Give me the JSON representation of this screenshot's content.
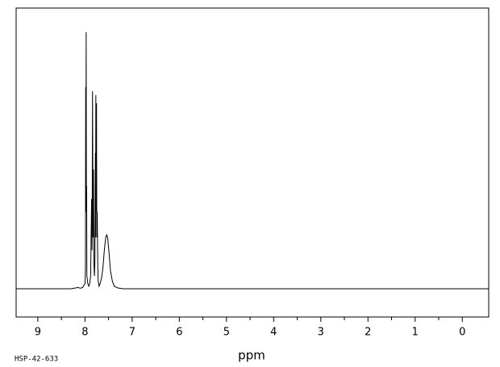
{
  "chart_data": {
    "type": "line",
    "x_label": "ppm",
    "annotation": "HSP-42-633",
    "xlim": [
      9.46,
      -0.56
    ],
    "ylim": [
      -0.11,
      1.094
    ],
    "xticks": [
      9,
      8,
      7,
      6,
      5,
      4,
      3,
      2,
      1,
      0
    ],
    "xminorticks": [
      8.5,
      7.5,
      6.5,
      5.5,
      4.5,
      3.5,
      2.5,
      1.5,
      0.5
    ],
    "series": [
      {
        "color": "#000000",
        "x": [
          9.46,
          8.3,
          8.2,
          8.15,
          8.1,
          8.05,
          8.0,
          7.99,
          7.985,
          7.98,
          7.975,
          7.97,
          7.965,
          7.96,
          7.94,
          7.92,
          7.9,
          7.88,
          7.86,
          7.85,
          7.84,
          7.83,
          7.82,
          7.81,
          7.8,
          7.79,
          7.78,
          7.775,
          7.77,
          7.76,
          7.755,
          7.75,
          7.74,
          7.73,
          7.72,
          7.7,
          7.68,
          7.65,
          7.62,
          7.59,
          7.56,
          7.54,
          7.52,
          7.49,
          7.46,
          7.42,
          7.38,
          7.3,
          7.2,
          -0.56
        ],
        "values": [
          0,
          0,
          0.003,
          0.005,
          0.002,
          0.005,
          0.02,
          0.08,
          0.786,
          0.3,
          1.0,
          0.32,
          0.4,
          0.05,
          0.02,
          0.01,
          0.02,
          0.05,
          0.35,
          0.15,
          0.77,
          0.2,
          0.465,
          0.1,
          0.05,
          0.1,
          0.53,
          0.2,
          0.755,
          0.3,
          0.723,
          0.2,
          0.3,
          0.1,
          0.03,
          0.01,
          0.02,
          0.04,
          0.08,
          0.15,
          0.2,
          0.21,
          0.2,
          0.14,
          0.07,
          0.03,
          0.01,
          0.003,
          0,
          0
        ]
      }
    ]
  }
}
